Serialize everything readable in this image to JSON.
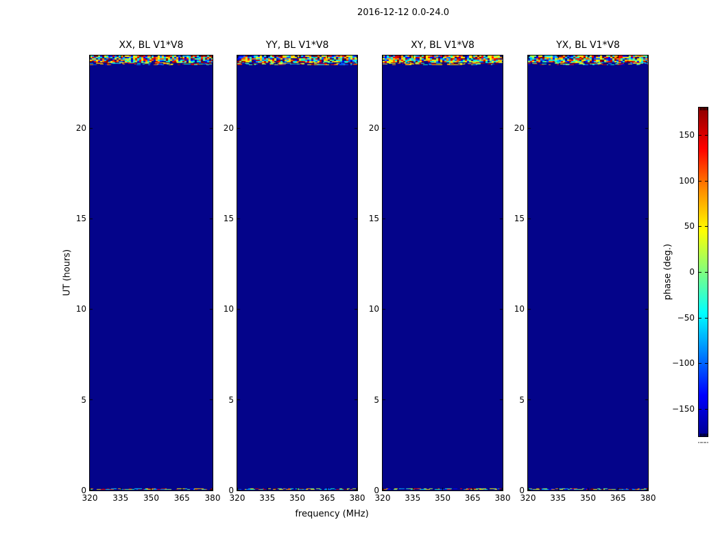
{
  "figure": {
    "title": "2016-12-12 0.0-24.0"
  },
  "subplots": [
    {
      "title": "XX, BL V1*V8"
    },
    {
      "title": "YY, BL V1*V8"
    },
    {
      "title": "XY, BL V1*V8"
    },
    {
      "title": "YX, BL V1*V8"
    }
  ],
  "axes": {
    "xlabel": "frequency (MHz)",
    "ylabel": "UT (hours)",
    "xticks": [
      320,
      335,
      350,
      365,
      380
    ],
    "yticks": [
      0,
      5,
      10,
      15,
      20
    ],
    "xlim": [
      320,
      380
    ],
    "ylim": [
      0,
      24
    ]
  },
  "colorbar": {
    "label": "phase (deg.)",
    "ticks": [
      150,
      100,
      50,
      0,
      -50,
      -100,
      -150
    ],
    "vmin": -180,
    "vmax": 180,
    "gradient": [
      "#8b0000",
      "#ff0000",
      "#ff8c00",
      "#ffff00",
      "#7fff7f",
      "#00ffff",
      "#0080ff",
      "#0000ff",
      "#00008f"
    ]
  },
  "colors": {
    "background": "#ffffff",
    "field": "#04048a",
    "frame": "#000000",
    "noise_palette": [
      "#800000",
      "#c00000",
      "#ff0000",
      "#ff6000",
      "#ffa000",
      "#ffe000",
      "#ffff00",
      "#b0ff40",
      "#60ff90",
      "#00ffd0",
      "#00e0ff",
      "#00a0ff",
      "#0060ff",
      "#0000ff",
      "#04048a"
    ]
  },
  "chart_data": {
    "type": "heatmap",
    "title": "2016-12-12 0.0-24.0",
    "panels": [
      "XX, BL V1*V8",
      "YY, BL V1*V8",
      "XY, BL V1*V8",
      "YX, BL V1*V8"
    ],
    "xlabel": "frequency (MHz)",
    "x_range": [
      320,
      380
    ],
    "x_ticks": [
      320,
      335,
      350,
      365,
      380
    ],
    "ylabel": "UT (hours)",
    "y_range": [
      0,
      24
    ],
    "y_ticks": [
      0,
      5,
      10,
      15,
      20
    ],
    "value_label": "phase (deg.)",
    "value_range": [
      -180,
      180
    ],
    "colormap": "jet",
    "colorbar_ticks": [
      150,
      100,
      50,
      0,
      -50,
      -100,
      -150
    ],
    "legend_position": "right colorbar",
    "grid": false,
    "content": "All four polarization panels are a uniform dark navy (phase near -180 deg) across 320-380 MHz for UT 0 to about 23.4 h; a band of random multicolor phase noise (-180 to 180 deg) spans roughly UT 23.4-24.0 h at the top of each panel, and a 1-2 px random-phase row lies at UT near 0 h at the bottom edge."
  }
}
